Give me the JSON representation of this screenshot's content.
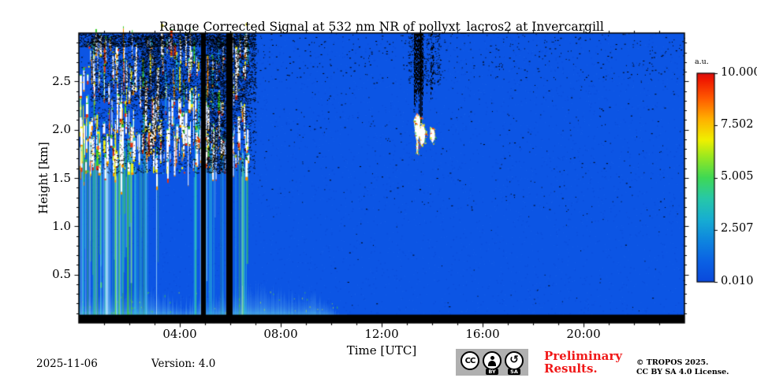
{
  "footer": {
    "date": "2025-11-06",
    "version": "Version: 4.0",
    "license_badge": {
      "cc": "CC",
      "by": "BY",
      "sa": "SA",
      "sa_icon": "↺"
    },
    "preliminary_line1": "Preliminary",
    "preliminary_line2": "Results.",
    "copyright_line1": "© TROPOS 2025.",
    "copyright_line2": "CC BY SA 4.0 License."
  },
  "chart_data": {
    "type": "heatmap",
    "title": "Range Corrected Signal at 532 nm NR of pollyxt_lacros2 at Invercargill",
    "xlabel": "Time [UTC]",
    "ylabel": "Height [km]",
    "x_range_hours": [
      0,
      24
    ],
    "ylim_km": [
      0,
      3.0
    ],
    "x_ticks": [
      {
        "hour": 4,
        "label": "04:00"
      },
      {
        "hour": 8,
        "label": "08:00"
      },
      {
        "hour": 12,
        "label": "12:00"
      },
      {
        "hour": 16,
        "label": "16:00"
      },
      {
        "hour": 20,
        "label": "20:00"
      }
    ],
    "x_minor_tick_every_hours": 1,
    "y_ticks": [
      {
        "km": 0.5,
        "label": "0.5"
      },
      {
        "km": 1.0,
        "label": "1.0"
      },
      {
        "km": 1.5,
        "label": "1.5"
      },
      {
        "km": 2.0,
        "label": "2.0"
      },
      {
        "km": 2.5,
        "label": "2.5"
      }
    ],
    "y_minor_tick_every_km": 0.1,
    "colorbar": {
      "unit_label": "a.u.",
      "tick_labels": [
        "10.000",
        "7.502",
        "5.005",
        "2.507",
        "0.010"
      ],
      "tick_values": [
        10.0,
        7.502,
        5.005,
        2.507,
        0.01
      ],
      "vmin": 0.01,
      "vmax": 10.0,
      "colormap_stops": [
        [
          0.0,
          "#0a49dc"
        ],
        [
          0.1,
          "#0b62e4"
        ],
        [
          0.2,
          "#0e86df"
        ],
        [
          0.3,
          "#17aed2"
        ],
        [
          0.4,
          "#27c8a8"
        ],
        [
          0.5,
          "#3fd955"
        ],
        [
          0.6,
          "#9ae820"
        ],
        [
          0.68,
          "#f0f000"
        ],
        [
          0.78,
          "#ffb000"
        ],
        [
          0.88,
          "#ff5a00"
        ],
        [
          0.97,
          "#f01800"
        ],
        [
          1.0,
          "#d81010"
        ]
      ]
    },
    "features": {
      "background_color": "#0c55e4",
      "boundary_layer": {
        "x_hours": [
          0,
          10.6
        ],
        "top_km_base": 0.24,
        "top_km_var": 0.16,
        "color": "#35c2d8"
      },
      "cloud_field": {
        "x_hours": [
          0.02,
          6.68
        ],
        "y_km": [
          1.55,
          2.93
        ],
        "streak_count": 330,
        "dash_count": 220,
        "core_color": "#ffffff",
        "edge_colors": [
          "#e83410",
          "#ff9100",
          "#f2ee12",
          "#3fd02c",
          "#24b6cc"
        ]
      },
      "fall_streaks": {
        "groups": [
          {
            "x_hours": [
              0.02,
              2.3
            ],
            "count": 70
          },
          {
            "x_hours": [
              4.55,
              6.65
            ],
            "count": 30
          },
          {
            "x_hours": [
              2.3,
              3.2
            ],
            "count": 10
          }
        ],
        "base_km": [
          1.5,
          1.95
        ],
        "colors": [
          "#2fc3d4",
          "#46d23a",
          "#bff0ff"
        ]
      },
      "noise_regions": [
        {
          "x_hours": [
            0.45,
            7.0
          ],
          "y_km": [
            2.3,
            2.98
          ],
          "density": 0.22
        },
        {
          "x_hours": [
            0.45,
            7.0
          ],
          "y_km": [
            1.55,
            2.3
          ],
          "density": 0.07
        },
        {
          "x_hours": [
            2.45,
            3.35
          ],
          "y_km": [
            1.75,
            2.98
          ],
          "density": 0.3
        },
        {
          "x_hours": [
            5.06,
            5.86
          ],
          "y_km": [
            1.55,
            2.98
          ],
          "density": 0.33
        },
        {
          "x_hours": [
            6.1,
            6.72
          ],
          "y_km": [
            2.0,
            2.98
          ],
          "density": 0.16
        },
        {
          "x_hours": [
            0,
            7
          ],
          "y_km": [
            2.86,
            3.0
          ],
          "density": 0.4
        },
        {
          "x_hours": [
            0,
            24
          ],
          "y_km": [
            2.5,
            3.0
          ],
          "density": 0.012
        },
        {
          "x_hours": [
            7,
            24
          ],
          "y_km": [
            1.1,
            2.5
          ],
          "density": 0.003
        },
        {
          "x_hours": [
            10,
            24
          ],
          "y_km": [
            0.12,
            1.1
          ],
          "density": 0.0008
        },
        {
          "x_hours": [
            13.05,
            14.35
          ],
          "y_km": [
            2.45,
            3.0
          ],
          "density": 0.1
        }
      ],
      "gap_bars": [
        {
          "x_hours": [
            4.84,
            5.03
          ]
        },
        {
          "x_hours": [
            5.84,
            6.09
          ]
        }
      ],
      "bottom_band_km": 0.085,
      "dropout_column": {
        "dense_x_hours": [
          13.3,
          13.63
        ],
        "bottom_km": 2.15,
        "solid_x_hours": [
          13.52,
          13.58
        ],
        "solid_bottom_km": 2.07,
        "secondary_x_hours": [
          13.95,
          14.06
        ],
        "secondary_bottom_km": 2.32
      },
      "cloud_blob": {
        "polys": [
          [
            [
              13.27,
              2.1
            ],
            [
              13.4,
              2.17
            ],
            [
              13.54,
              2.13
            ],
            [
              13.52,
              2.03
            ],
            [
              13.63,
              2.06
            ],
            [
              13.74,
              1.99
            ],
            [
              13.7,
              1.87
            ],
            [
              13.56,
              1.83
            ],
            [
              13.49,
              1.93
            ],
            [
              13.4,
              1.85
            ],
            [
              13.33,
              1.95
            ]
          ],
          [
            [
              13.93,
              2.03
            ],
            [
              14.08,
              2.0
            ],
            [
              14.12,
              1.92
            ],
            [
              14.02,
              1.86
            ],
            [
              13.91,
              1.91
            ]
          ],
          [
            [
              13.37,
              1.86
            ],
            [
              13.46,
              1.88
            ],
            [
              13.44,
              1.74
            ],
            [
              13.38,
              1.76
            ]
          ]
        ],
        "fringe_colors": [
          "#f2ee12",
          "#ff9100",
          "#e83410",
          "#3fd02c"
        ]
      }
    }
  }
}
